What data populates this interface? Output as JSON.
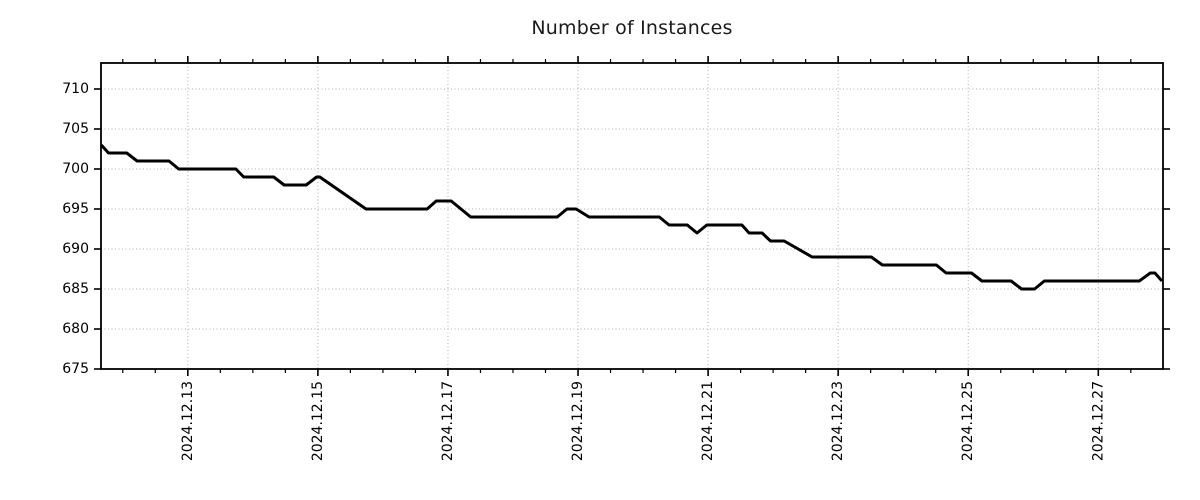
{
  "chart_data": {
    "type": "line",
    "title": "Number of Instances",
    "background_color": "#ffffff",
    "line_color": "#000000",
    "line_width": 3,
    "grid": {
      "visible": true,
      "style": "dotted",
      "color": "#b0b0b0"
    },
    "legend": "none",
    "x_axis": {
      "unit": "date (December 2024, day-of-month)",
      "range": [
        11.665,
        27.995
      ],
      "major_ticks": [
        {
          "day": 13,
          "label": "2024.12.13"
        },
        {
          "day": 15,
          "label": "2024.12.15"
        },
        {
          "day": 17,
          "label": "2024.12.17"
        },
        {
          "day": 19,
          "label": "2024.12.19"
        },
        {
          "day": 21,
          "label": "2024.12.21"
        },
        {
          "day": 23,
          "label": "2024.12.23"
        },
        {
          "day": 25,
          "label": "2024.12.25"
        },
        {
          "day": 27,
          "label": "2024.12.27"
        }
      ],
      "minor_tick_start": 12.0,
      "minor_tick_end": 27.5,
      "minor_tick_step": 0.5,
      "label_rotation_deg": -90
    },
    "y_axis": {
      "range": [
        675,
        713.25
      ],
      "ticks": [
        675,
        680,
        685,
        690,
        695,
        700,
        705,
        710
      ]
    },
    "series": [
      {
        "name": "instances",
        "points": [
          [
            11.67,
            703
          ],
          [
            11.78,
            702
          ],
          [
            12.06,
            702
          ],
          [
            12.22,
            701
          ],
          [
            12.71,
            701
          ],
          [
            12.86,
            700
          ],
          [
            13.74,
            700
          ],
          [
            13.86,
            699
          ],
          [
            14.32,
            699
          ],
          [
            14.48,
            698
          ],
          [
            14.82,
            698
          ],
          [
            14.98,
            699
          ],
          [
            15.03,
            699
          ],
          [
            15.74,
            695
          ],
          [
            16.68,
            695
          ],
          [
            16.82,
            696
          ],
          [
            17.05,
            696
          ],
          [
            17.35,
            694
          ],
          [
            18.68,
            694
          ],
          [
            18.83,
            695
          ],
          [
            18.97,
            695
          ],
          [
            19.17,
            694
          ],
          [
            20.25,
            694
          ],
          [
            20.4,
            693
          ],
          [
            20.68,
            693
          ],
          [
            20.83,
            692
          ],
          [
            20.98,
            693
          ],
          [
            21.52,
            693
          ],
          [
            21.63,
            692
          ],
          [
            21.83,
            692
          ],
          [
            21.96,
            691
          ],
          [
            22.17,
            691
          ],
          [
            22.6,
            689
          ],
          [
            23.51,
            689
          ],
          [
            23.68,
            688
          ],
          [
            24.51,
            688
          ],
          [
            24.66,
            687
          ],
          [
            25.05,
            687
          ],
          [
            25.21,
            686
          ],
          [
            25.66,
            686
          ],
          [
            25.82,
            685
          ],
          [
            26.02,
            685
          ],
          [
            26.17,
            686
          ],
          [
            27.63,
            686
          ],
          [
            27.8,
            687
          ],
          [
            27.87,
            687
          ],
          [
            27.98,
            686
          ]
        ]
      }
    ]
  }
}
